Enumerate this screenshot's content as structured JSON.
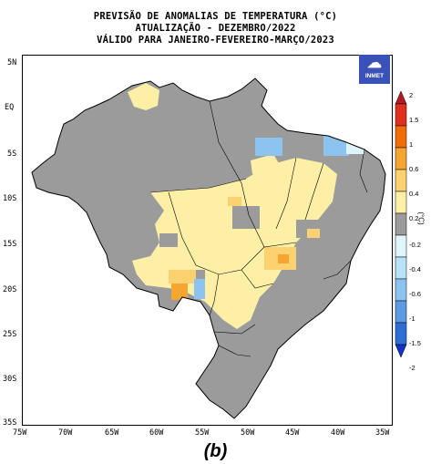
{
  "header": {
    "title_line1": "PREVISÃO DE ANOMALIAS DE TEMPERATURA (°C)",
    "title_line2": "ATUALIZAÇÃO - DEZEMBRO/2022",
    "title_line3": "VÁLIDO PARA JANEIRO-FEVEREIRO-MARÇO/2023"
  },
  "logo_text": "INMET",
  "caption": "(b)",
  "lat_ticks": [
    "5N",
    "EQ",
    "5S",
    "10S",
    "15S",
    "20S",
    "25S",
    "30S",
    "35S"
  ],
  "lon_ticks": [
    "75W",
    "70W",
    "65W",
    "60W",
    "55W",
    "50W",
    "45W",
    "40W",
    "35W"
  ],
  "colorbar": {
    "unit": "(°C)",
    "labels": [
      "2",
      "1.5",
      "1",
      "0.6",
      "0.4",
      "0.2",
      "-0.2",
      "-0.4",
      "-0.6",
      "-1",
      "-1.5",
      "-2"
    ],
    "colors": [
      "#b2182b",
      "#e0301e",
      "#f26c0a",
      "#f7a531",
      "#fbd26f",
      "#fdf0a6",
      "#9b9b9b",
      "#dff4fc",
      "#b8e2f7",
      "#8cc3ef",
      "#5a9be3",
      "#2f6fd5",
      "#1332c8"
    ]
  }
}
